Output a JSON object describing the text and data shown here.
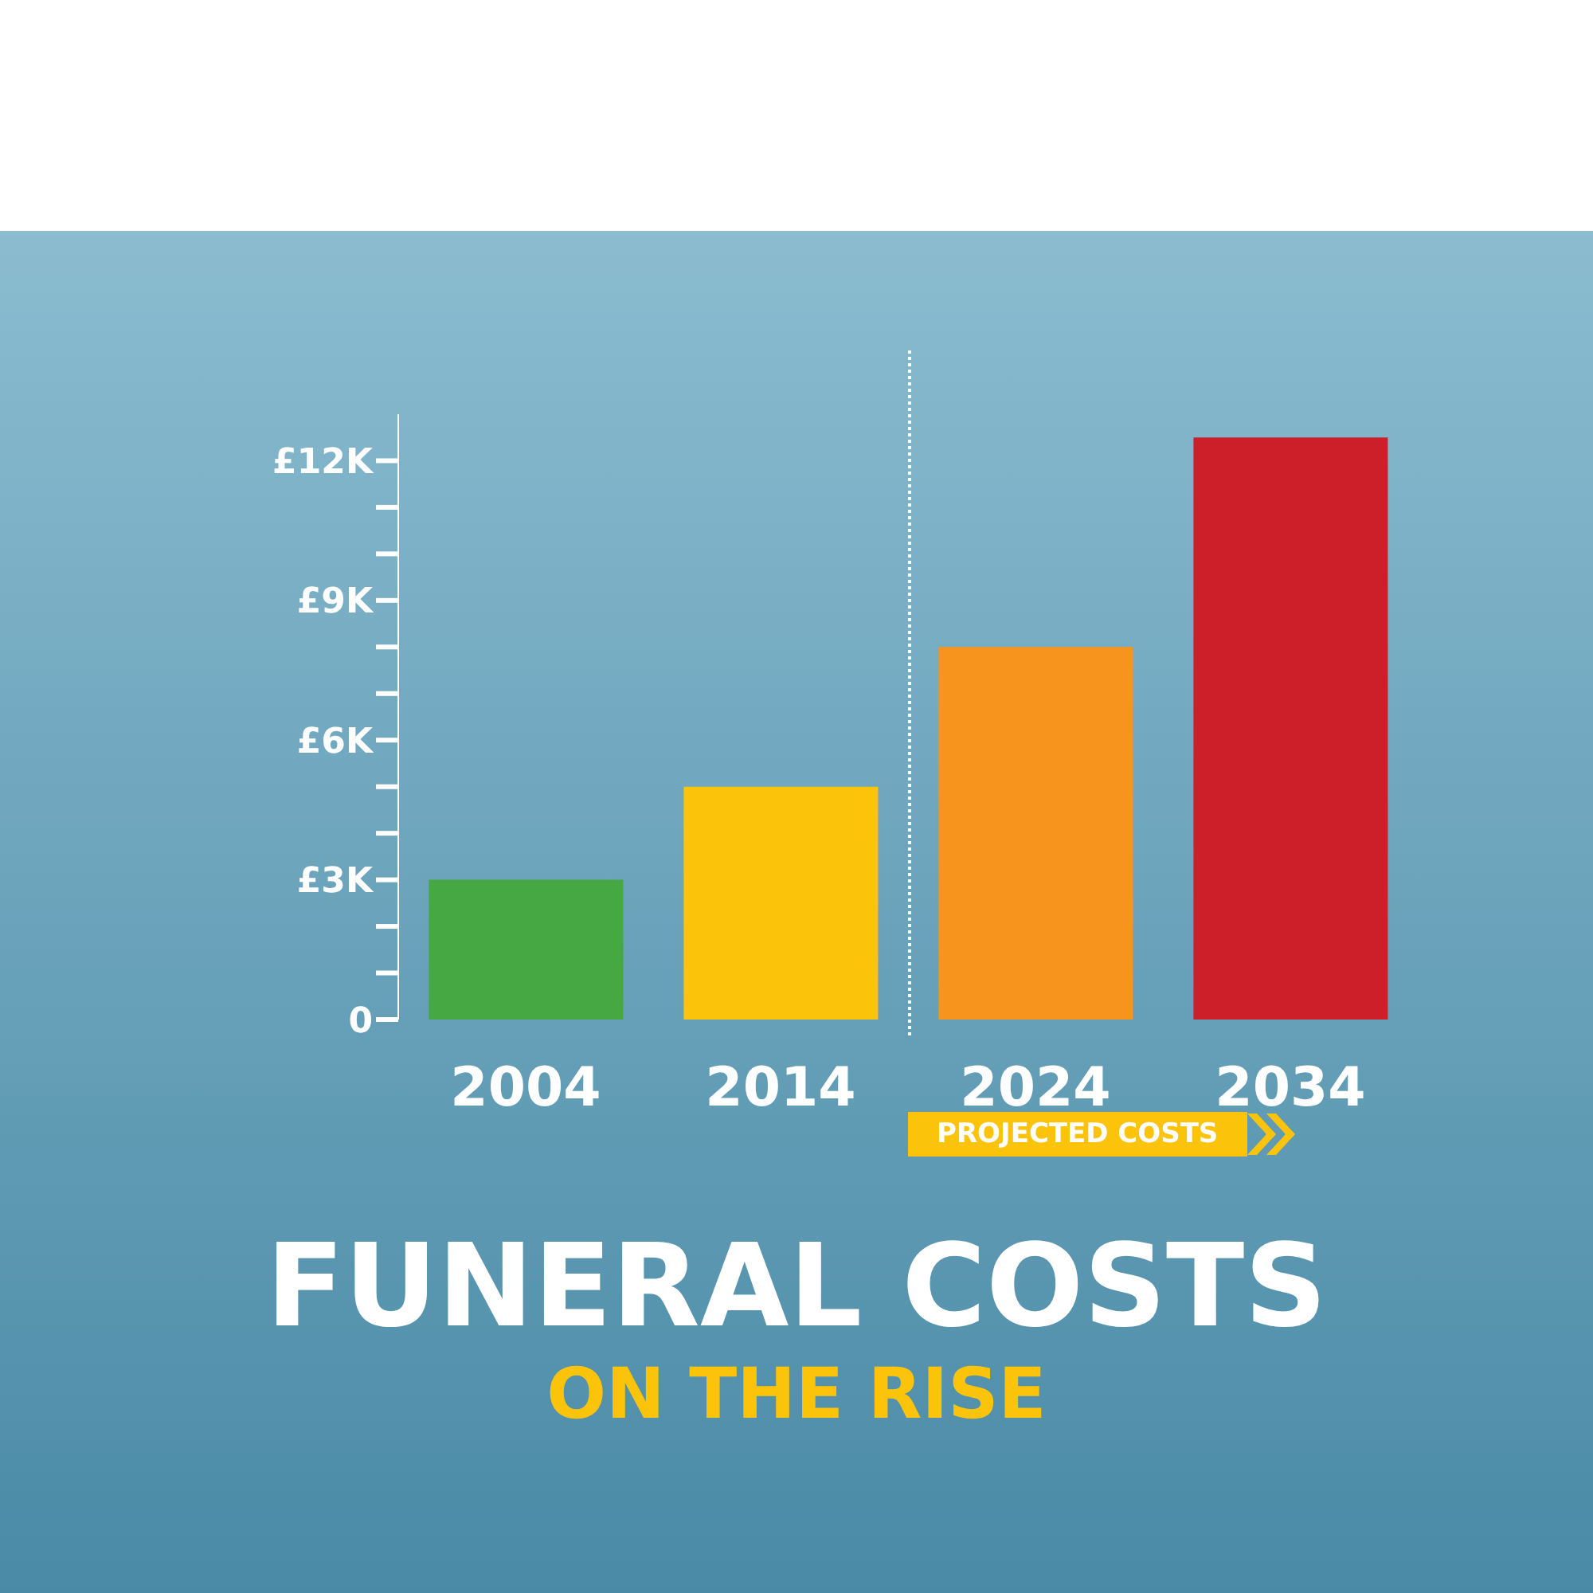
{
  "chart_data": {
    "type": "bar",
    "title": "FUNERAL COSTS",
    "subtitle": "ON THE RISE",
    "categories": [
      "2004",
      "2014",
      "2024",
      "2034"
    ],
    "values": [
      3,
      5,
      8,
      12.5
    ],
    "colors": [
      "#45a843",
      "#fcc30b",
      "#f7941d",
      "#cc1f2a"
    ],
    "ylim": [
      0,
      13
    ],
    "yticks": [
      {
        "value": 0,
        "label": "0"
      },
      {
        "value": 1,
        "label": null
      },
      {
        "value": 2,
        "label": null
      },
      {
        "value": 3,
        "label": "£3K"
      },
      {
        "value": 4,
        "label": null
      },
      {
        "value": 5,
        "label": null
      },
      {
        "value": 6,
        "label": "£6K"
      },
      {
        "value": 7,
        "label": null
      },
      {
        "value": 8,
        "label": null
      },
      {
        "value": 9,
        "label": "£9K"
      },
      {
        "value": 10,
        "label": null
      },
      {
        "value": 11,
        "label": null
      },
      {
        "value": 12,
        "label": "£12K"
      }
    ],
    "annotations": [
      "PROJECTED COSTS"
    ],
    "grid": false,
    "legend": false
  }
}
